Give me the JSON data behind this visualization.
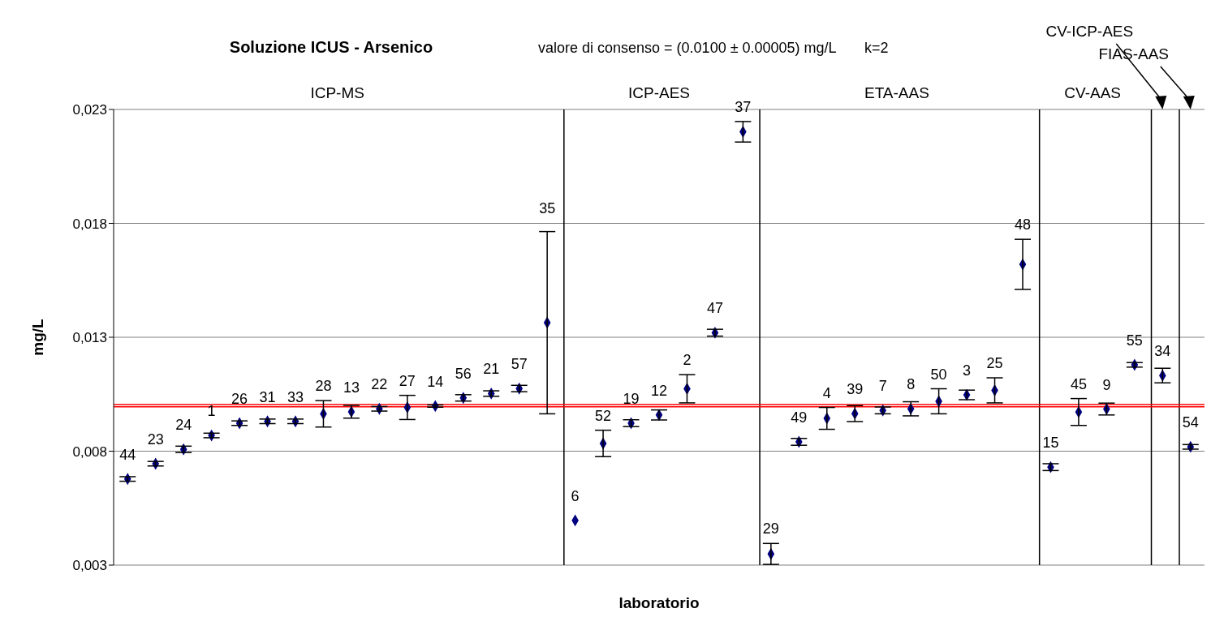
{
  "chart_data": {
    "type": "scatter",
    "title": "Soluzione ICUS - Arsenico",
    "subtitle": "valore di consenso = (0.0100 ± 0.00005) mg/L       k=2",
    "xlabel": "laboratorio",
    "ylabel": "mg/L",
    "categories": [
      null,
      null,
      null,
      null,
      null,
      null,
      null,
      null,
      null,
      null,
      null,
      null,
      null,
      null,
      null,
      null,
      null,
      null,
      null,
      null,
      null,
      null,
      null,
      null,
      null,
      null,
      null,
      null,
      null,
      null,
      null,
      null,
      null,
      null,
      null,
      null,
      null,
      null,
      null
    ],
    "series": [
      {
        "color": "#000080",
        "values": [
          0.00678,
          0.00745,
          0.00808,
          0.00869,
          0.00923,
          0.00931,
          0.00931,
          0.00964,
          0.00973,
          0.00986,
          0.00992,
          0.00998,
          0.01034,
          0.01053,
          0.01075,
          0.01364,
          null,
          null,
          null,
          null,
          null,
          null,
          null,
          null,
          null,
          null,
          null,
          null,
          null,
          null,
          null,
          null,
          null,
          null,
          null,
          null,
          null,
          null,
          null
        ],
        "errors": [
          0.0001,
          0.0001,
          0.00014,
          0.0001,
          0.0001,
          0.0001,
          0.0001,
          0.00058,
          0.00028,
          0.0001,
          0.00053,
          5e-05,
          0.00014,
          0.00012,
          0.00014,
          0.004,
          null,
          null,
          null,
          null,
          null,
          null,
          null,
          null,
          null,
          null,
          null,
          null,
          null,
          null,
          null,
          null,
          null,
          null,
          null,
          null,
          null,
          null,
          null
        ]
      },
      {
        "color": "#000080",
        "values": [
          null,
          null,
          null,
          null,
          null,
          null,
          null,
          null,
          null,
          null,
          null,
          null,
          null,
          null,
          null,
          null,
          0.00496,
          0.00834,
          0.00923,
          0.00959,
          0.01074,
          0.0132,
          0.02202,
          null,
          null,
          null,
          null,
          null,
          null,
          null,
          null,
          null,
          null,
          null,
          null,
          null,
          null,
          null,
          null
        ],
        "errors": [
          null,
          null,
          null,
          null,
          null,
          null,
          null,
          null,
          null,
          null,
          null,
          null,
          null,
          null,
          null,
          null,
          null,
          0.00058,
          0.00015,
          0.00022,
          0.00062,
          0.00015,
          0.00045,
          null,
          null,
          null,
          null,
          null,
          null,
          null,
          null,
          null,
          null,
          null,
          null,
          null,
          null,
          null,
          null
        ]
      },
      {
        "color": "#000080",
        "values": [
          null,
          null,
          null,
          null,
          null,
          null,
          null,
          null,
          null,
          null,
          null,
          null,
          null,
          null,
          null,
          null,
          null,
          null,
          null,
          null,
          null,
          null,
          null,
          0.00349,
          0.00841,
          0.00944,
          0.00965,
          0.00979,
          0.00986,
          0.01019,
          0.01047,
          0.01067,
          0.0162,
          null,
          null,
          null,
          null,
          null,
          null
        ],
        "errors": [
          null,
          null,
          null,
          null,
          null,
          null,
          null,
          null,
          null,
          null,
          null,
          null,
          null,
          null,
          null,
          null,
          null,
          null,
          null,
          null,
          null,
          null,
          null,
          0.00046,
          0.00015,
          0.00048,
          0.00035,
          0.00015,
          0.00031,
          0.00055,
          0.00021,
          0.00055,
          0.0011,
          null,
          null,
          null,
          null,
          null,
          null
        ]
      },
      {
        "color": "#000080",
        "values": [
          null,
          null,
          null,
          null,
          null,
          null,
          null,
          null,
          null,
          null,
          null,
          null,
          null,
          null,
          null,
          null,
          null,
          null,
          null,
          null,
          null,
          null,
          null,
          null,
          null,
          null,
          null,
          null,
          null,
          null,
          null,
          null,
          null,
          0.0073,
          0.00972,
          0.00985,
          0.01179,
          null,
          null
        ],
        "errors": [
          null,
          null,
          null,
          null,
          null,
          null,
          null,
          null,
          null,
          null,
          null,
          null,
          null,
          null,
          null,
          null,
          null,
          null,
          null,
          null,
          null,
          null,
          null,
          null,
          null,
          null,
          null,
          null,
          null,
          null,
          null,
          null,
          null,
          0.00015,
          0.00059,
          0.00026,
          0.0001,
          null,
          null
        ]
      },
      {
        "color": "#000080",
        "values": [
          null,
          null,
          null,
          null,
          null,
          null,
          null,
          null,
          null,
          null,
          null,
          null,
          null,
          null,
          null,
          null,
          null,
          null,
          null,
          null,
          null,
          null,
          null,
          null,
          null,
          null,
          null,
          null,
          null,
          null,
          null,
          null,
          null,
          null,
          null,
          null,
          null,
          0.01132,
          null
        ],
        "errors": [
          null,
          null,
          null,
          null,
          null,
          null,
          null,
          null,
          null,
          null,
          null,
          null,
          null,
          null,
          null,
          null,
          null,
          null,
          null,
          null,
          null,
          null,
          null,
          null,
          null,
          null,
          null,
          null,
          null,
          null,
          null,
          null,
          null,
          null,
          null,
          null,
          null,
          0.00032,
          null
        ]
      },
      {
        "color": "#000080",
        "values": [
          null,
          null,
          null,
          null,
          null,
          null,
          null,
          null,
          null,
          null,
          null,
          null,
          null,
          null,
          null,
          null,
          null,
          null,
          null,
          null,
          null,
          null,
          null,
          null,
          null,
          null,
          null,
          null,
          null,
          null,
          null,
          null,
          null,
          null,
          null,
          null,
          null,
          null,
          0.00819
        ],
        "errors": [
          null,
          null,
          null,
          null,
          null,
          null,
          null,
          null,
          null,
          null,
          null,
          null,
          null,
          null,
          null,
          null,
          null,
          null,
          null,
          null,
          null,
          null,
          null,
          null,
          null,
          null,
          null,
          null,
          null,
          null,
          null,
          null,
          null,
          null,
          null,
          null,
          null,
          null,
          0.0001
        ]
      }
    ],
    "ylim": [
      0.003,
      0.023
    ],
    "yticks": [
      {
        "value": 0.003,
        "label": "0,003"
      },
      {
        "value": 0.008,
        "label": "0,008"
      },
      {
        "value": 0.013,
        "label": "0,013"
      },
      {
        "value": 0.018,
        "label": "0,018"
      },
      {
        "value": 0.023,
        "label": "0,023"
      }
    ],
    "tick_labels": "y",
    "grid": "y",
    "legend": false,
    "marker": "diamond",
    "ref_lines": [
      {
        "axis": "y",
        "value": 0.00995,
        "color": "#ff0000"
      },
      {
        "axis": "y",
        "value": 0.01005,
        "color": "#ff0000"
      }
    ],
    "annotations": [
      "ICP-MS",
      "ICP-AES",
      "ETA-AAS",
      "CV-AAS",
      "CV-ICP-AES",
      "FIAS-AAS",
      {
        "text": "44",
        "y": 0.00678
      },
      {
        "text": "23",
        "y": 0.00745
      },
      {
        "text": "24",
        "y": 0.00808
      },
      {
        "text": "1",
        "y": 0.00869
      },
      {
        "text": "26",
        "y": 0.00923
      },
      {
        "text": "31",
        "y": 0.00931
      },
      {
        "text": "33",
        "y": 0.00931
      },
      {
        "text": "28",
        "y": 0.00964
      },
      {
        "text": "13",
        "y": 0.00973
      },
      {
        "text": "22",
        "y": 0.00986
      },
      {
        "text": "27",
        "y": 0.00992
      },
      {
        "text": "14",
        "y": 0.00998
      },
      {
        "text": "56",
        "y": 0.01034
      },
      {
        "text": "21",
        "y": 0.01053
      },
      {
        "text": "57",
        "y": 0.01075
      },
      {
        "text": "35",
        "y": 0.01759
      },
      {
        "text": "6",
        "y": 0.00496
      },
      {
        "text": "52",
        "y": 0.00834
      },
      {
        "text": "19",
        "y": 0.00923
      },
      {
        "text": "12",
        "y": 0.00959
      },
      {
        "text": "2",
        "y": 0.01074
      },
      {
        "text": "47",
        "y": 0.0132
      },
      {
        "text": "37",
        "y": 0.02202
      },
      {
        "text": "29",
        "y": 0.00349
      },
      {
        "text": "49",
        "y": 0.00841
      },
      {
        "text": "4",
        "y": 0.00944
      },
      {
        "text": "39",
        "y": 0.00965
      },
      {
        "text": "7",
        "y": 0.00979
      },
      {
        "text": "8",
        "y": 0.00986
      },
      {
        "text": "50",
        "y": 0.01019
      },
      {
        "text": "3",
        "y": 0.01047
      },
      {
        "text": "25",
        "y": 0.01067
      },
      {
        "text": "48",
        "y": 0.0162
      },
      {
        "text": "15",
        "y": 0.0073
      },
      {
        "text": "45",
        "y": 0.00972
      },
      {
        "text": "9",
        "y": 0.00985
      },
      {
        "text": "55",
        "y": 0.01179
      },
      {
        "text": "34",
        "y": 0.01132
      },
      {
        "text": "54",
        "y": 0.00819
      }
    ]
  }
}
